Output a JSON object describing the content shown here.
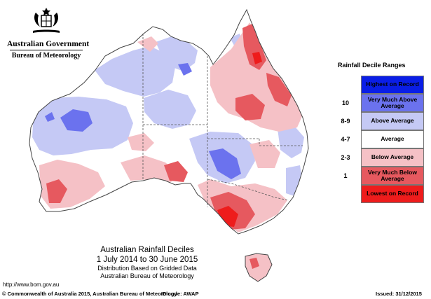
{
  "header": {
    "government": "Australian Government",
    "bureau": "Bureau of Meteorology"
  },
  "legend": {
    "title": "Rainfall Decile Ranges",
    "items": [
      {
        "code": "",
        "label": "Highest on Record",
        "color": "#0a1ee6",
        "text_color": "#000000"
      },
      {
        "code": "10",
        "label": "Very Much Above Average",
        "color": "#6b72ee",
        "text_color": "#000000"
      },
      {
        "code": "8-9",
        "label": "Above Average",
        "color": "#c5c9f5",
        "text_color": "#000000"
      },
      {
        "code": "4-7",
        "label": "Average",
        "color": "#ffffff",
        "text_color": "#000000"
      },
      {
        "code": "2-3",
        "label": "Below Average",
        "color": "#f5c1c6",
        "text_color": "#000000"
      },
      {
        "code": "1",
        "label": "Very Much Below Average",
        "color": "#e6595f",
        "text_color": "#000000"
      },
      {
        "code": "",
        "label": "Lowest on Record",
        "color": "#ee1c1c",
        "text_color": "#000000"
      }
    ]
  },
  "caption": {
    "title": "Australian Rainfall Deciles",
    "period": "1 July 2014 to 30 June 2015",
    "sub1": "Distribution Based on Gridded Data",
    "sub2": "Australian Bureau of Meteorology"
  },
  "url": "http://www.bom.gov.au",
  "footer": {
    "copyright": "© Commonwealth of Australia 2015, Australian Bureau of Meteorology",
    "id_code": "ID code: AWAP",
    "issued": "Issued: 31/12/2015"
  },
  "colors": {
    "highest": "#0a1ee6",
    "very_much_above": "#6b72ee",
    "above": "#c5c9f5",
    "average": "#ffffff",
    "below": "#f5c1c6",
    "very_much_below": "#e6595f",
    "lowest": "#ee1c1c",
    "border": "#555555"
  }
}
